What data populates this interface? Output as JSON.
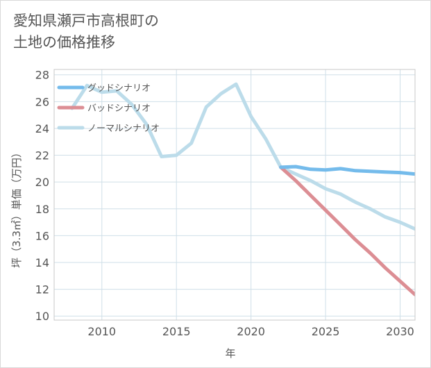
{
  "title_lines": [
    "愛知県瀬戸市高根町の",
    "土地の価格推移"
  ],
  "chart_data": {
    "type": "line",
    "title": "愛知県瀬戸市高根町の土地の価格推移",
    "xlabel": "年",
    "ylabel": "坪（3.3㎡）単価（万円）",
    "xlim": [
      2006.8,
      2031
    ],
    "ylim": [
      9.7,
      28.4
    ],
    "xticks": [
      2010,
      2015,
      2020,
      2025,
      2030
    ],
    "yticks": [
      10,
      12,
      14,
      16,
      18,
      20,
      22,
      24,
      26,
      28
    ],
    "grid": true,
    "legend_position": "top-left",
    "series": [
      {
        "name": "グッドシナリオ",
        "color": "#74bbeb",
        "x": [
          2022,
          2023,
          2024,
          2025,
          2026,
          2027,
          2028,
          2029,
          2030,
          2031
        ],
        "values": [
          21.1,
          21.15,
          20.95,
          20.9,
          21.0,
          20.85,
          20.8,
          20.75,
          20.7,
          20.6
        ]
      },
      {
        "name": "バッドシナリオ",
        "color": "#dc8e94",
        "x": [
          2022,
          2023,
          2024,
          2025,
          2026,
          2027,
          2028,
          2029,
          2030,
          2031
        ],
        "values": [
          21.1,
          20.1,
          19.0,
          17.9,
          16.8,
          15.7,
          14.7,
          13.6,
          12.6,
          11.6
        ]
      },
      {
        "name": "ノーマルシナリオ",
        "color": "#bcdcea",
        "x": [
          2008,
          2009,
          2010,
          2011,
          2012,
          2013,
          2014,
          2015,
          2016,
          2017,
          2018,
          2019,
          2020,
          2021,
          2022,
          2023,
          2024,
          2025,
          2026,
          2027,
          2028,
          2029,
          2030,
          2031
        ],
        "values": [
          25.5,
          27.2,
          26.7,
          26.8,
          25.8,
          24.3,
          21.9,
          22.0,
          22.9,
          25.6,
          26.6,
          27.3,
          24.9,
          23.2,
          21.1,
          20.6,
          20.1,
          19.5,
          19.1,
          18.5,
          18.0,
          17.4,
          17.0,
          16.5
        ]
      }
    ]
  }
}
